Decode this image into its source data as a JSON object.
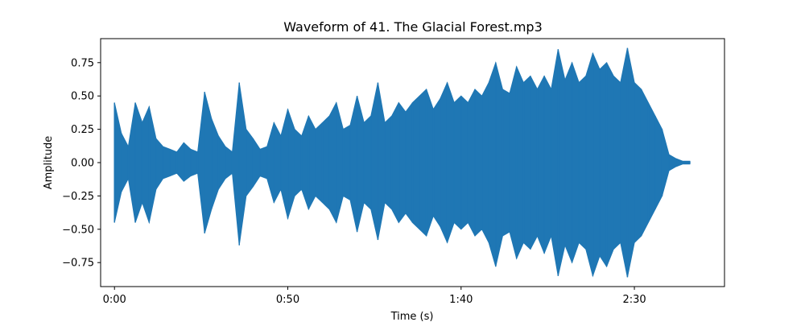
{
  "chart_data": {
    "type": "line",
    "title": "Waveform of 41. The Glacial Forest.mp3",
    "xlabel": "Time (s)",
    "ylabel": "Amplitude",
    "xlim": [
      -4,
      176
    ],
    "ylim": [
      -0.93,
      0.93
    ],
    "x_ticks": [
      {
        "value": 0,
        "label": "0:00"
      },
      {
        "value": 50,
        "label": "0:50"
      },
      {
        "value": 100,
        "label": "1:40"
      },
      {
        "value": 150,
        "label": "2:30"
      }
    ],
    "y_ticks": [
      {
        "value": -0.75,
        "label": "−0.75"
      },
      {
        "value": -0.5,
        "label": "−0.50"
      },
      {
        "value": -0.25,
        "label": "−0.25"
      },
      {
        "value": 0,
        "label": "0.00"
      },
      {
        "value": 0.25,
        "label": "0.25"
      },
      {
        "value": 0.5,
        "label": "0.50"
      },
      {
        "value": 0.75,
        "label": "0.75"
      }
    ],
    "grid": false,
    "color": "#1f77b4",
    "series": [
      {
        "x": [
          0,
          2,
          4,
          6,
          8,
          10,
          12,
          14,
          16,
          18,
          20,
          22,
          24,
          26,
          28,
          30,
          32,
          34,
          36,
          38,
          40,
          42,
          44,
          46,
          48,
          50,
          52,
          54,
          56,
          58,
          60,
          62,
          64,
          66,
          68,
          70,
          72,
          74,
          76,
          78,
          80,
          82,
          84,
          86,
          88,
          90,
          92,
          94,
          96,
          98,
          100,
          102,
          104,
          106,
          108,
          110,
          112,
          114,
          116,
          118,
          120,
          122,
          124,
          126,
          128,
          130,
          132,
          134,
          136,
          138,
          140,
          142,
          144,
          146,
          148,
          150,
          152,
          154,
          156,
          158,
          160,
          162,
          164,
          166
        ],
        "upper": [
          0.45,
          0.22,
          0.12,
          0.45,
          0.3,
          0.42,
          0.18,
          0.12,
          0.1,
          0.08,
          0.15,
          0.1,
          0.08,
          0.53,
          0.33,
          0.2,
          0.12,
          0.08,
          0.6,
          0.25,
          0.18,
          0.1,
          0.12,
          0.3,
          0.2,
          0.4,
          0.25,
          0.2,
          0.35,
          0.25,
          0.3,
          0.35,
          0.45,
          0.25,
          0.28,
          0.5,
          0.3,
          0.35,
          0.6,
          0.3,
          0.35,
          0.45,
          0.38,
          0.45,
          0.5,
          0.55,
          0.4,
          0.48,
          0.6,
          0.45,
          0.5,
          0.45,
          0.55,
          0.5,
          0.6,
          0.75,
          0.55,
          0.52,
          0.72,
          0.6,
          0.65,
          0.55,
          0.65,
          0.55,
          0.85,
          0.62,
          0.75,
          0.6,
          0.65,
          0.82,
          0.7,
          0.75,
          0.65,
          0.6,
          0.86,
          0.6,
          0.55,
          0.45,
          0.35,
          0.25,
          0.06,
          0.03,
          0.01,
          0.01
        ],
        "lower": [
          -0.45,
          -0.22,
          -0.12,
          -0.45,
          -0.3,
          -0.45,
          -0.2,
          -0.12,
          -0.1,
          -0.08,
          -0.14,
          -0.1,
          -0.08,
          -0.53,
          -0.35,
          -0.2,
          -0.12,
          -0.08,
          -0.62,
          -0.25,
          -0.18,
          -0.1,
          -0.12,
          -0.3,
          -0.2,
          -0.42,
          -0.25,
          -0.2,
          -0.35,
          -0.25,
          -0.3,
          -0.35,
          -0.45,
          -0.25,
          -0.28,
          -0.52,
          -0.3,
          -0.35,
          -0.58,
          -0.3,
          -0.35,
          -0.45,
          -0.38,
          -0.45,
          -0.5,
          -0.55,
          -0.4,
          -0.48,
          -0.6,
          -0.45,
          -0.5,
          -0.45,
          -0.55,
          -0.5,
          -0.6,
          -0.78,
          -0.55,
          -0.52,
          -0.72,
          -0.6,
          -0.65,
          -0.55,
          -0.68,
          -0.55,
          -0.85,
          -0.62,
          -0.75,
          -0.6,
          -0.65,
          -0.85,
          -0.7,
          -0.78,
          -0.65,
          -0.6,
          -0.86,
          -0.6,
          -0.55,
          -0.45,
          -0.35,
          -0.25,
          -0.06,
          -0.03,
          -0.01,
          -0.01
        ]
      }
    ]
  }
}
